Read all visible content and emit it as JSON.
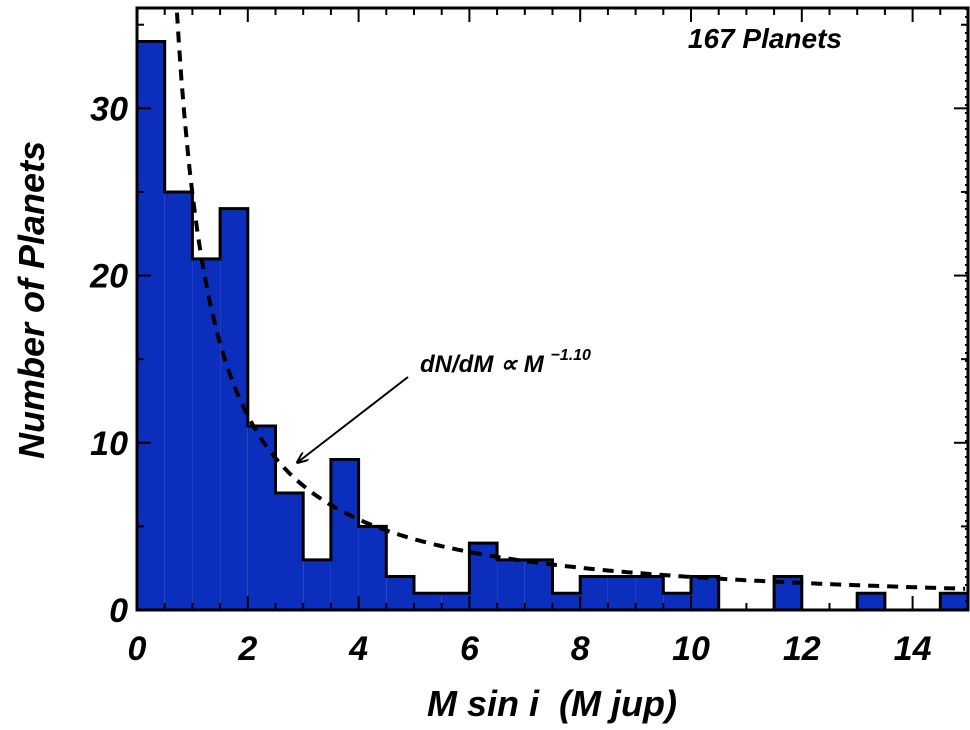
{
  "chart_data": {
    "type": "bar",
    "xlabel": "M sin i  (M jup)",
    "ylabel": "Number of Planets",
    "xlim": [
      0,
      15
    ],
    "ylim": [
      0,
      36
    ],
    "xticks": [
      0,
      2,
      4,
      6,
      8,
      10,
      12,
      14
    ],
    "xtick_labels": [
      "0",
      "2",
      "4",
      "6",
      "8",
      "10",
      "12",
      "14"
    ],
    "yticks": [
      0,
      10,
      20,
      30
    ],
    "ytick_labels": [
      "0",
      "10",
      "20",
      "30"
    ],
    "bin_width": 0.5,
    "bin_starts": [
      0,
      0.5,
      1,
      1.5,
      2,
      2.5,
      3,
      3.5,
      4,
      4.5,
      5,
      5.5,
      6,
      6.5,
      7,
      7.5,
      8,
      8.5,
      9,
      9.5,
      10,
      10.5,
      11,
      11.5,
      12,
      12.5,
      13,
      13.5,
      14,
      14.5
    ],
    "values": [
      34,
      25,
      21,
      24,
      11,
      7,
      3,
      9,
      5,
      2,
      1,
      1,
      4,
      3,
      3,
      1,
      2,
      2,
      2,
      1,
      2,
      0,
      0,
      2,
      0,
      0,
      1,
      0,
      0,
      1
    ],
    "fill_color": "#0b2ebd",
    "fit": {
      "label_main": "dN/dM ∝ M",
      "label_exponent": "−1.10",
      "exponent": -1.1,
      "coefficient": 24.9,
      "style": "dashed"
    },
    "annotation": "167 Planets"
  }
}
